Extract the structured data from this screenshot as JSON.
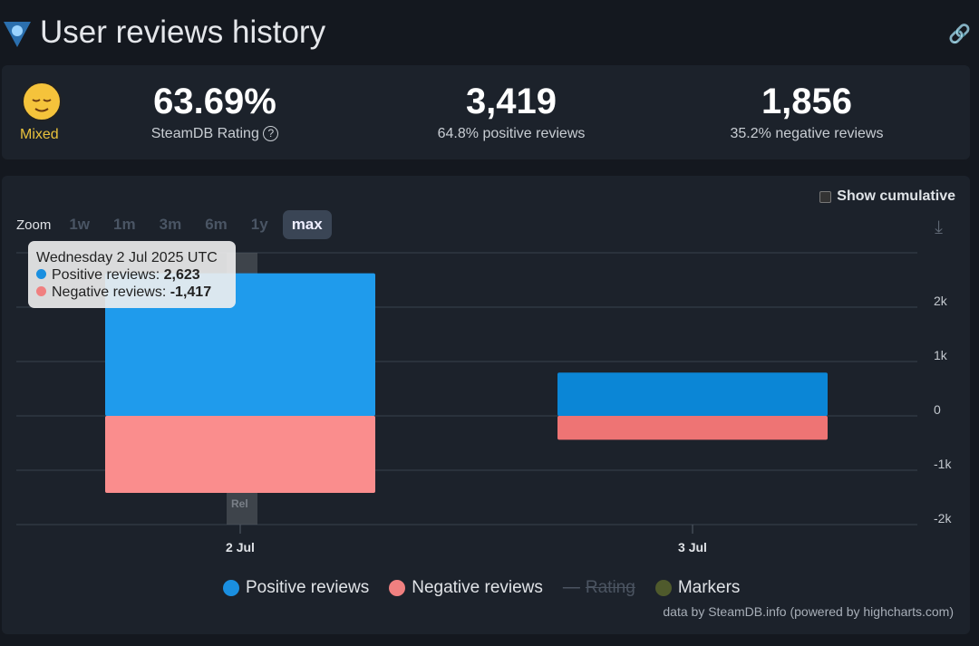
{
  "header": {
    "title": "User reviews history",
    "link_icon": "link-icon"
  },
  "stats": {
    "verdict": "Mixed",
    "rating": "63.69%",
    "rating_label": "SteamDB Rating",
    "help": "?",
    "positive": "3,419",
    "positive_label": "64.8% positive reviews",
    "negative": "1,856",
    "negative_label": "35.2% negative reviews"
  },
  "controls": {
    "show_cumulative": "Show cumulative",
    "zoom_label": "Zoom",
    "zoom_options": [
      "1w",
      "1m",
      "3m",
      "6m",
      "1y",
      "max"
    ],
    "zoom_selected": "max"
  },
  "tooltip": {
    "date": "Wednesday 2 Jul 2025 UTC",
    "positive_label": "Positive reviews: ",
    "positive_value": "2,623",
    "negative_label": "Negative reviews: ",
    "negative_value": "-1,417"
  },
  "marker_label": "Rel",
  "credit": "data by SteamDB.info (powered by highcharts.com)",
  "colors": {
    "positive": "#1a9be6",
    "negative": "#f28b8b",
    "markers": "#4f5a2c"
  },
  "chart_data": {
    "type": "bar",
    "stacking": "normal",
    "categories": [
      "2 Jul",
      "3 Jul"
    ],
    "series": [
      {
        "name": "Positive reviews",
        "values": [
          2623,
          796
        ]
      },
      {
        "name": "Negative reviews",
        "values": [
          -1417,
          -439
        ]
      }
    ],
    "legend": [
      "Positive reviews",
      "Negative reviews",
      "Rating",
      "Markers"
    ],
    "legend_disabled": [
      "Rating"
    ],
    "y_ticks": [
      "2k",
      "1k",
      "0",
      "-1k",
      "-2k"
    ],
    "ylim": [
      -2000,
      3000
    ],
    "grid": true,
    "legend_position": "bottom"
  }
}
